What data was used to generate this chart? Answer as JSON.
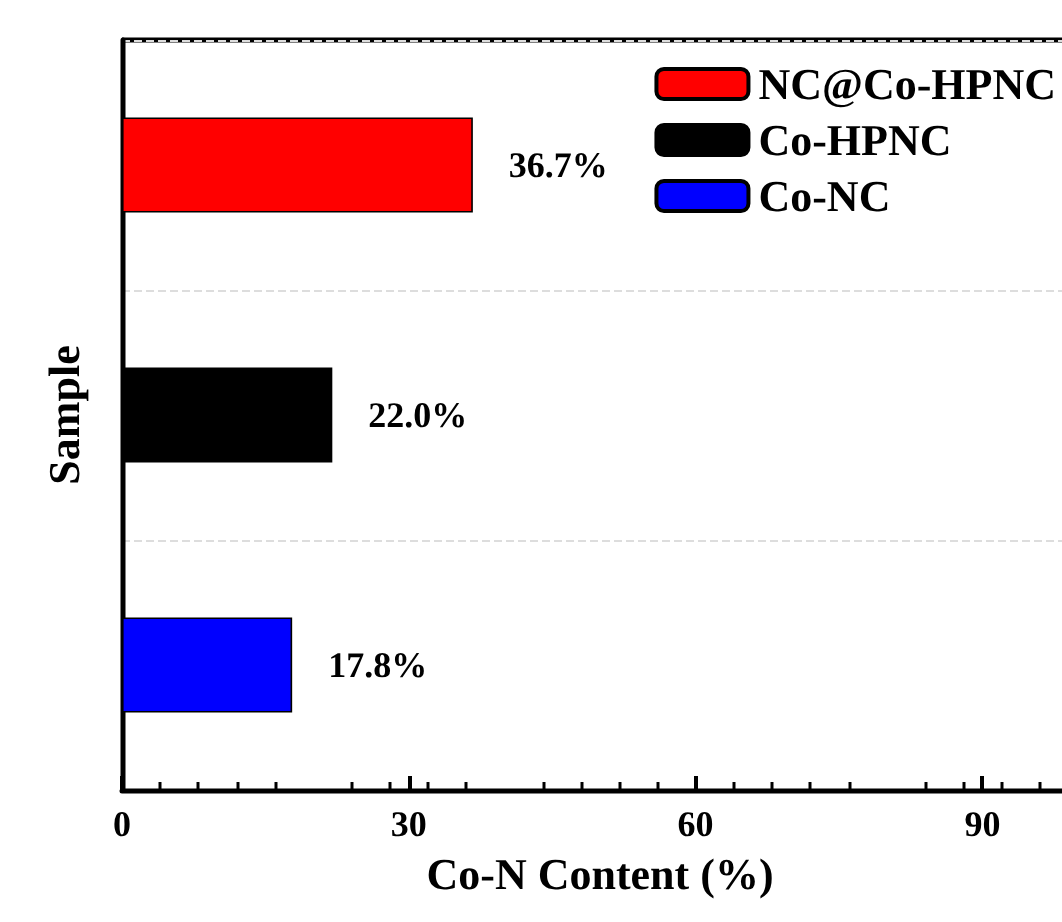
{
  "chart_data": {
    "type": "bar",
    "orientation": "horizontal",
    "xlabel": "Co-N Content (%)",
    "ylabel": "Sample",
    "categories": [
      null,
      null,
      null
    ],
    "series": [
      {
        "name": "NC@Co-HPNC",
        "color": "#ff0000",
        "values": [
          36.7,
          null,
          null
        ],
        "value_labels": [
          "36.7%",
          null,
          null
        ]
      },
      {
        "name": "Co-HPNC",
        "color": "#000000",
        "values": [
          null,
          22.0,
          null
        ],
        "value_labels": [
          null,
          "22.0%",
          null
        ]
      },
      {
        "name": "Co-NC",
        "color": "#0000ff",
        "values": [
          null,
          null,
          17.8
        ],
        "value_labels": [
          null,
          null,
          "17.8%"
        ]
      }
    ],
    "xlim": [
      0,
      100
    ],
    "xticks": [
      0,
      30,
      60,
      90
    ],
    "grid": "y",
    "legend": "top right",
    "tick_labels": "x"
  }
}
